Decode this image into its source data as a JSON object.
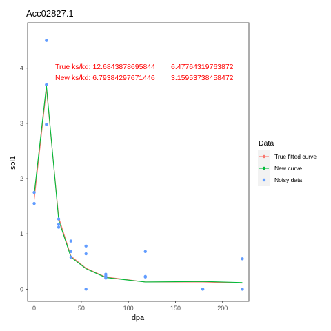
{
  "chart_data": {
    "type": "line",
    "title": "Acc02827.1",
    "xlabel": "dpa",
    "ylabel": "sol1",
    "xlim": [
      -7,
      228
    ],
    "ylim": [
      -0.22,
      4.82
    ],
    "xticks": [
      0,
      50,
      100,
      150,
      200
    ],
    "yticks": [
      0,
      1,
      2,
      3,
      4
    ],
    "grid": false,
    "legend": {
      "title": "Data",
      "placement": "right",
      "entries": [
        {
          "label": "True fitted curve",
          "color": "#F8766D"
        },
        {
          "label": "New curve",
          "color": "#00BA38"
        },
        {
          "label": "Noisy data",
          "color": "#619CFF"
        }
      ]
    },
    "annotations": [
      {
        "text": "True ks/kd: 12.6843878695844",
        "text2": "6.47764319763872"
      },
      {
        "text": "New ks/kd: 6.79384297671446",
        "text2": "3.15953738458472"
      }
    ],
    "series": [
      {
        "name": "True fitted curve",
        "color": "#F8766D",
        "x": [
          0,
          13,
          26,
          39,
          55,
          76,
          118,
          179,
          221
        ],
        "y": [
          1.62,
          3.62,
          1.3,
          0.6,
          0.38,
          0.22,
          0.13,
          0.13,
          0.11
        ]
      },
      {
        "name": "New curve",
        "color": "#00BA38",
        "x": [
          0,
          13,
          26,
          39,
          55,
          76,
          118,
          179,
          221
        ],
        "y": [
          1.72,
          3.68,
          1.25,
          0.58,
          0.37,
          0.21,
          0.13,
          0.14,
          0.12
        ]
      },
      {
        "name": "Noisy data",
        "color": "#619CFF",
        "x": [
          0,
          0,
          13,
          13,
          13,
          26,
          26,
          26,
          39,
          39,
          39,
          55,
          55,
          55,
          76,
          76,
          76,
          118,
          118,
          118,
          179,
          179,
          221,
          221
        ],
        "y": [
          1.75,
          1.55,
          4.5,
          3.7,
          2.98,
          1.27,
          1.17,
          1.12,
          0.87,
          0.68,
          0.58,
          0.78,
          0.64,
          0.0,
          0.27,
          0.24,
          0.2,
          0.68,
          0.23,
          0.22,
          0.0,
          0.0,
          0.55,
          0.0
        ]
      }
    ]
  }
}
